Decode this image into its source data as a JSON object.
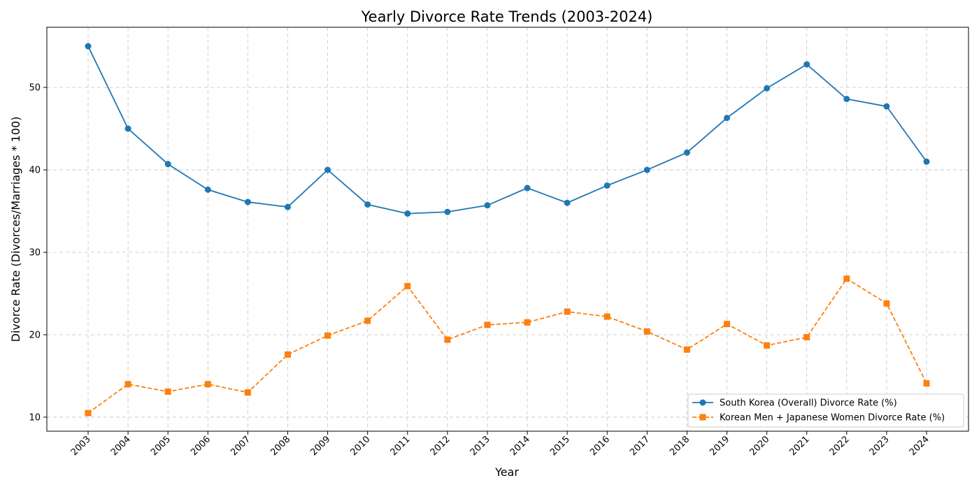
{
  "colors": {
    "series1": "#1f77b4",
    "series2": "#ff7f0e",
    "grid": "#b0b0b0",
    "axis": "#000000"
  },
  "chart_data": {
    "type": "line",
    "title": "Yearly Divorce Rate Trends (2003-2024)",
    "xlabel": "Year",
    "ylabel": "Divorce Rate (Divorces/Marriages * 100)",
    "categories": [
      "2003",
      "2004",
      "2005",
      "2006",
      "2007",
      "2008",
      "2009",
      "2010",
      "2011",
      "2012",
      "2013",
      "2014",
      "2015",
      "2016",
      "2017",
      "2018",
      "2019",
      "2020",
      "2021",
      "2022",
      "2023",
      "2024"
    ],
    "ylim": [
      8.3,
      57.3
    ],
    "yticks": [
      10,
      20,
      30,
      40,
      50
    ],
    "grid": true,
    "legend_position": "bottom-right",
    "series": [
      {
        "name": "South Korea (Overall) Divorce Rate (%)",
        "marker": "circle",
        "line_style": "solid",
        "values": [
          55.0,
          45.0,
          40.7,
          37.6,
          36.1,
          35.5,
          40.0,
          35.8,
          34.7,
          34.9,
          35.7,
          37.8,
          36.0,
          38.1,
          40.0,
          42.1,
          46.3,
          49.9,
          52.8,
          48.6,
          47.7,
          41.0
        ]
      },
      {
        "name": "Korean Men + Japanese Women Divorce Rate (%)",
        "marker": "square",
        "line_style": "dashed",
        "values": [
          10.5,
          14.0,
          13.1,
          14.0,
          13.0,
          17.6,
          19.9,
          21.7,
          25.9,
          19.4,
          21.2,
          21.5,
          22.8,
          22.2,
          20.4,
          18.2,
          21.3,
          18.7,
          19.7,
          26.8,
          23.8,
          14.1
        ]
      }
    ]
  }
}
